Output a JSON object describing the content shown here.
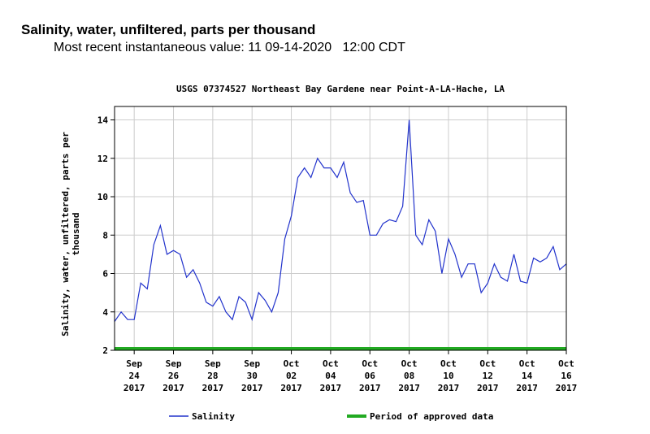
{
  "chart_data": {
    "type": "line",
    "header_title": "Salinity, water, unfiltered, parts per thousand",
    "header_subtitle": "Most recent instantaneous value: 11 09-14-2020   12:00 CDT",
    "title": "USGS 07374527 Northeast Bay Gardene near Point-A-LA-Hache, LA",
    "ylabel": [
      "Salinity, water, unfiltered, parts per",
      "thousand"
    ],
    "x": [
      "2017-09-23T00:00",
      "2017-09-23T08:00",
      "2017-09-23T16:00",
      "2017-09-24T00:00",
      "2017-09-24T08:00",
      "2017-09-24T16:00",
      "2017-09-25T00:00",
      "2017-09-25T08:00",
      "2017-09-25T16:00",
      "2017-09-26T00:00",
      "2017-09-26T08:00",
      "2017-09-26T16:00",
      "2017-09-27T00:00",
      "2017-09-27T08:00",
      "2017-09-27T16:00",
      "2017-09-28T00:00",
      "2017-09-28T08:00",
      "2017-09-28T16:00",
      "2017-09-29T00:00",
      "2017-09-29T08:00",
      "2017-09-29T16:00",
      "2017-09-30T00:00",
      "2017-09-30T08:00",
      "2017-09-30T16:00",
      "2017-10-01T00:00",
      "2017-10-01T08:00",
      "2017-10-01T16:00",
      "2017-10-02T00:00",
      "2017-10-02T08:00",
      "2017-10-02T16:00",
      "2017-10-03T00:00",
      "2017-10-03T08:00",
      "2017-10-03T16:00",
      "2017-10-04T00:00",
      "2017-10-04T08:00",
      "2017-10-04T16:00",
      "2017-10-05T00:00",
      "2017-10-05T08:00",
      "2017-10-05T16:00",
      "2017-10-06T00:00",
      "2017-10-06T08:00",
      "2017-10-06T16:00",
      "2017-10-07T00:00",
      "2017-10-07T08:00",
      "2017-10-07T16:00",
      "2017-10-08T00:00",
      "2017-10-08T08:00",
      "2017-10-08T16:00",
      "2017-10-09T00:00",
      "2017-10-09T08:00",
      "2017-10-09T16:00",
      "2017-10-10T00:00",
      "2017-10-10T08:00",
      "2017-10-10T16:00",
      "2017-10-11T00:00",
      "2017-10-11T08:00",
      "2017-10-11T16:00",
      "2017-10-12T00:00",
      "2017-10-12T08:00",
      "2017-10-12T16:00",
      "2017-10-13T00:00",
      "2017-10-13T08:00",
      "2017-10-13T16:00",
      "2017-10-14T00:00",
      "2017-10-14T08:00",
      "2017-10-14T16:00",
      "2017-10-15T00:00",
      "2017-10-15T08:00",
      "2017-10-15T16:00",
      "2017-10-16T00:00"
    ],
    "series": [
      {
        "name": "Salinity",
        "color": "#2233cc",
        "values": [
          3.5,
          4.0,
          3.6,
          3.6,
          5.5,
          5.2,
          7.5,
          8.5,
          7.0,
          7.2,
          7.0,
          5.8,
          6.2,
          5.5,
          4.5,
          4.3,
          4.8,
          4.0,
          3.6,
          4.8,
          4.5,
          3.6,
          5.0,
          4.6,
          4.0,
          5.0,
          7.8,
          9.0,
          11.0,
          11.5,
          11.0,
          12.0,
          11.5,
          11.5,
          11.0,
          11.8,
          10.2,
          9.7,
          9.8,
          8.0,
          8.0,
          8.6,
          8.8,
          8.7,
          9.5,
          14.0,
          8.0,
          7.5,
          8.8,
          8.2,
          6.0,
          7.8,
          7.0,
          5.8,
          6.5,
          6.5,
          5.0,
          5.5,
          6.5,
          5.8,
          5.6,
          7.0,
          5.6,
          5.5,
          6.8,
          6.6,
          6.8,
          7.4,
          6.2,
          6.5
        ]
      }
    ],
    "approved_period": {
      "name": "Period of approved data",
      "color": "#22aa22",
      "x": [
        "2017-09-23T00:00",
        "2017-10-16T00:00"
      ]
    },
    "xlim": [
      "2017-09-23T00:00",
      "2017-10-16T00:00"
    ],
    "xticks": [
      {
        "value": "2017-09-24T00:00",
        "label": [
          "Sep",
          "24",
          "2017"
        ]
      },
      {
        "value": "2017-09-26T00:00",
        "label": [
          "Sep",
          "26",
          "2017"
        ]
      },
      {
        "value": "2017-09-28T00:00",
        "label": [
          "Sep",
          "28",
          "2017"
        ]
      },
      {
        "value": "2017-09-30T00:00",
        "label": [
          "Sep",
          "30",
          "2017"
        ]
      },
      {
        "value": "2017-10-02T00:00",
        "label": [
          "Oct",
          "02",
          "2017"
        ]
      },
      {
        "value": "2017-10-04T00:00",
        "label": [
          "Oct",
          "04",
          "2017"
        ]
      },
      {
        "value": "2017-10-06T00:00",
        "label": [
          "Oct",
          "06",
          "2017"
        ]
      },
      {
        "value": "2017-10-08T00:00",
        "label": [
          "Oct",
          "08",
          "2017"
        ]
      },
      {
        "value": "2017-10-10T00:00",
        "label": [
          "Oct",
          "10",
          "2017"
        ]
      },
      {
        "value": "2017-10-12T00:00",
        "label": [
          "Oct",
          "12",
          "2017"
        ]
      },
      {
        "value": "2017-10-14T00:00",
        "label": [
          "Oct",
          "14",
          "2017"
        ]
      },
      {
        "value": "2017-10-16T00:00",
        "label": [
          "Oct",
          "16",
          "2017"
        ]
      }
    ],
    "ylim": [
      2,
      14.7
    ],
    "yticks": [
      2,
      4,
      6,
      8,
      10,
      12,
      14
    ],
    "grid": true
  }
}
